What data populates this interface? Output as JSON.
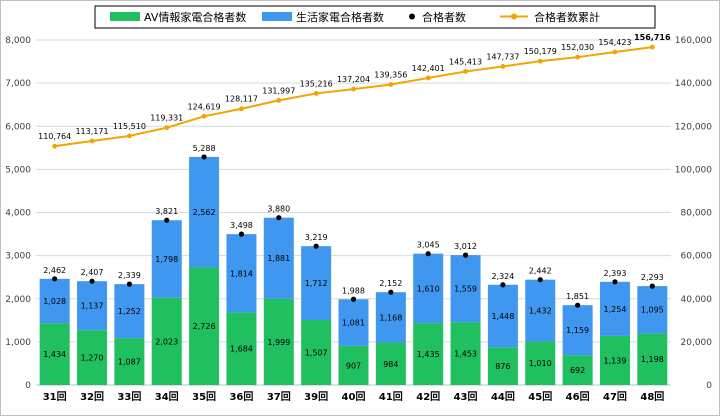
{
  "chart_data": {
    "type": "bar",
    "categories": [
      "31回",
      "32回",
      "33回",
      "34回",
      "35回",
      "36回",
      "37回",
      "39回",
      "40回",
      "41回",
      "42回",
      "43回",
      "44回",
      "45回",
      "46回",
      "47回",
      "48回"
    ],
    "series": [
      {
        "name": "AV情報家電合格者数",
        "kind": "stacked-bar",
        "color": "#20c060",
        "values": [
          1434,
          1270,
          1087,
          2023,
          2726,
          1684,
          1999,
          1507,
          907,
          984,
          1435,
          1453,
          876,
          1010,
          692,
          1139,
          1198
        ]
      },
      {
        "name": "生活家電合格者数",
        "kind": "stacked-bar",
        "color": "#3f97f0",
        "values": [
          1028,
          1137,
          1252,
          1798,
          2562,
          1814,
          1881,
          1712,
          1081,
          1168,
          1610,
          1559,
          1448,
          1432,
          1159,
          1254,
          1095
        ]
      },
      {
        "name": "合格者数",
        "kind": "marker",
        "color": "#000000",
        "values": [
          2462,
          2407,
          2339,
          3821,
          5288,
          3498,
          3880,
          3219,
          1988,
          2152,
          3045,
          3012,
          2324,
          2442,
          1851,
          2393,
          2293
        ]
      },
      {
        "name": "合格者数累計",
        "kind": "line",
        "axis": "right",
        "color": "#f5a300",
        "values": [
          110764,
          113171,
          115510,
          119331,
          124619,
          128117,
          131997,
          135216,
          137204,
          139356,
          142401,
          145413,
          147737,
          150179,
          152030,
          154423,
          156716
        ]
      }
    ],
    "y_left": {
      "min": 0,
      "max": 8000,
      "ticks": [
        "0",
        "1,000",
        "2,000",
        "3,000",
        "4,000",
        "5,000",
        "6,000",
        "7,000",
        "8,000"
      ]
    },
    "y_right": {
      "min": 0,
      "max": 160000,
      "ticks": [
        "0",
        "20,000",
        "40,000",
        "60,000",
        "80,000",
        "100,000",
        "120,000",
        "140,000",
        "160,000"
      ]
    },
    "highlight_last_cumulative_color": "#ff0000",
    "grid": true,
    "legend_position": "top"
  }
}
